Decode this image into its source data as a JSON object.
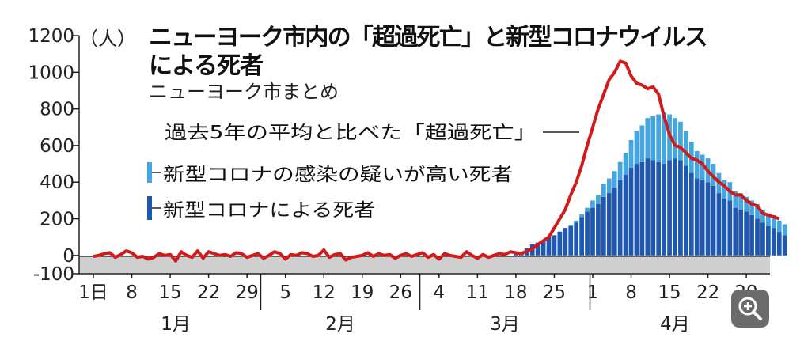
{
  "title_line1": "ニューヨーク市内の「超過死亡」と新型コロナウイルス",
  "title_line2": "による死者",
  "subtitle": "ニューヨーク市まとめ",
  "chart_data": {
    "type": "bar",
    "ylabel": "（人）",
    "ylim": [
      -100,
      1200
    ],
    "yticks": [
      -100,
      0,
      200,
      400,
      600,
      800,
      1000,
      1200
    ],
    "grid": false,
    "x_start": "1月1日",
    "x_tick_labels": [
      {
        "day": 1,
        "label": "1日"
      },
      {
        "day": 8,
        "label": "8"
      },
      {
        "day": 15,
        "label": "15"
      },
      {
        "day": 22,
        "label": "22"
      },
      {
        "day": 29,
        "label": "29"
      },
      {
        "day": 36,
        "label": "5"
      },
      {
        "day": 43,
        "label": "12"
      },
      {
        "day": 50,
        "label": "19"
      },
      {
        "day": 57,
        "label": "26"
      },
      {
        "day": 64,
        "label": "4"
      },
      {
        "day": 71,
        "label": "11"
      },
      {
        "day": 78,
        "label": "18"
      },
      {
        "day": 85,
        "label": "25"
      },
      {
        "day": 92,
        "label": "1"
      },
      {
        "day": 99,
        "label": "8"
      },
      {
        "day": 106,
        "label": "15"
      },
      {
        "day": 113,
        "label": "22"
      },
      {
        "day": 120,
        "label": "29"
      }
    ],
    "months": [
      {
        "label": "1月",
        "start_day": 1,
        "end_day": 31
      },
      {
        "label": "2月",
        "start_day": 32,
        "end_day": 60
      },
      {
        "label": "3月",
        "start_day": 61,
        "end_day": 91
      },
      {
        "label": "4月",
        "start_day": 92,
        "end_day": 122
      }
    ],
    "excess_series": {
      "name": "過去5年の平均と比べた「超過死亡」",
      "color": "#d11a1a",
      "start_day": 1,
      "values": [
        -5,
        0,
        10,
        15,
        -10,
        5,
        25,
        15,
        -10,
        -5,
        -20,
        -10,
        10,
        0,
        5,
        -30,
        20,
        0,
        -10,
        25,
        -15,
        20,
        10,
        0,
        5,
        -5,
        15,
        10,
        -10,
        0,
        10,
        -15,
        0,
        20,
        10,
        -20,
        5,
        0,
        15,
        10,
        -5,
        0,
        30,
        -10,
        5,
        10,
        -25,
        -10,
        -5,
        0,
        15,
        -5,
        10,
        0,
        5,
        -15,
        0,
        10,
        -5,
        5,
        15,
        -10,
        5,
        -20,
        10,
        0,
        -5,
        -10,
        20,
        0,
        -15,
        5,
        -10,
        0,
        10,
        5,
        20,
        15,
        10,
        25,
        35,
        60,
        80,
        100,
        150,
        200,
        250,
        330,
        400,
        490,
        600,
        700,
        800,
        880,
        960,
        1000,
        1060,
        1050,
        980,
        940,
        930,
        910,
        920,
        880,
        760,
        660,
        600,
        590,
        560,
        530,
        520,
        500,
        460,
        430,
        400,
        380,
        350,
        330,
        330,
        300,
        280,
        270,
        230,
        220,
        210,
        200
      ]
    },
    "bar_series": [
      {
        "name": "新型コロナによる死者",
        "color": "#1f58b0",
        "start_day": 78,
        "values": [
          10,
          20,
          40,
          60,
          70,
          80,
          100,
          110,
          130,
          150,
          160,
          180,
          210,
          240,
          260,
          280,
          320,
          340,
          370,
          410,
          440,
          480,
          500,
          510,
          530,
          520,
          510,
          500,
          520,
          530,
          520,
          490,
          450,
          420,
          410,
          400,
          380,
          340,
          310,
          300,
          260,
          250,
          240,
          220,
          200,
          180,
          160,
          150,
          130,
          110
        ]
      },
      {
        "name": "新型コロナの感染の疑いが高い死者",
        "color": "#44a6e0",
        "start_day": 78,
        "values": [
          0,
          0,
          0,
          0,
          0,
          0,
          0,
          0,
          0,
          0,
          5,
          10,
          15,
          20,
          40,
          50,
          70,
          80,
          90,
          100,
          120,
          150,
          180,
          200,
          220,
          240,
          260,
          280,
          250,
          220,
          210,
          190,
          170,
          150,
          140,
          130,
          120,
          110,
          100,
          100,
          90,
          90,
          80,
          80,
          80,
          70,
          70,
          70,
          60,
          60
        ]
      }
    ],
    "legend": "left"
  }
}
